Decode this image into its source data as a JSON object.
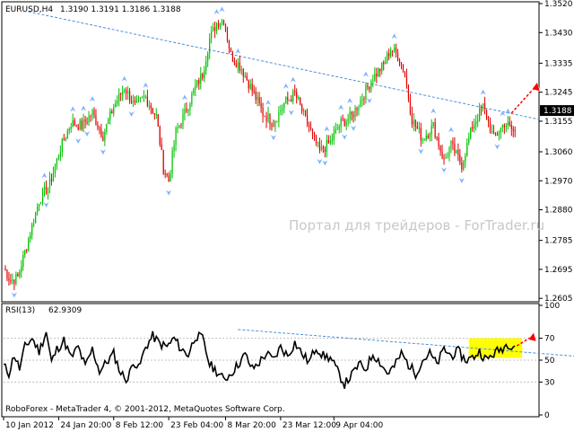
{
  "header": {
    "symbol": "EURUSD,H4",
    "ohlc": "1.3190 1.3191 1.3186 1.3188"
  },
  "watermark": "Портал для трейдеров - ForTrader.ru",
  "footer_copyright": "RoboForex - MetaTrader 4, © 2001-2012, MetaQuotes Software Corp.",
  "colors": {
    "bull": "#00c000",
    "bear": "#e00000",
    "fractal": "#7fb2ff",
    "trendline": "#4a90d9",
    "highlight": "#ffff00",
    "arrow": "#ff0000"
  },
  "chart_data": [
    {
      "type": "candlestick",
      "name": "EURUSD,H4",
      "ylim": [
        1.26,
        1.352
      ],
      "yticks": [
        "1.3520",
        "1.3430",
        "1.3335",
        "1.3245",
        "1.3155",
        "1.3060",
        "1.2970",
        "1.2880",
        "1.2785",
        "1.2695",
        "1.2605"
      ],
      "current_price_label": "1.3188",
      "xticks": [
        "10 Jan 2012",
        "24 Jan 20:00",
        "8 Feb 12:00",
        "23 Feb 04:00",
        "8 Mar 20:00",
        "23 Mar 12:00",
        "9 Apr 04:00"
      ],
      "close_path": [
        [
          0,
          1.27
        ],
        [
          4,
          1.266
        ],
        [
          8,
          1.267
        ],
        [
          14,
          1.279
        ],
        [
          20,
          1.291
        ],
        [
          26,
          1.296
        ],
        [
          32,
          1.307
        ],
        [
          38,
          1.315
        ],
        [
          44,
          1.314
        ],
        [
          50,
          1.318
        ],
        [
          56,
          1.311
        ],
        [
          62,
          1.32
        ],
        [
          68,
          1.326
        ],
        [
          74,
          1.32
        ],
        [
          80,
          1.323
        ],
        [
          86,
          1.317
        ],
        [
          90,
          1.301
        ],
        [
          93,
          1.297
        ],
        [
          97,
          1.312
        ],
        [
          102,
          1.318
        ],
        [
          108,
          1.326
        ],
        [
          112,
          1.33
        ],
        [
          116,
          1.341
        ],
        [
          120,
          1.346
        ],
        [
          124,
          1.347
        ],
        [
          128,
          1.336
        ],
        [
          134,
          1.332
        ],
        [
          140,
          1.325
        ],
        [
          146,
          1.318
        ],
        [
          152,
          1.315
        ],
        [
          158,
          1.321
        ],
        [
          164,
          1.324
        ],
        [
          170,
          1.316
        ],
        [
          178,
          1.306
        ],
        [
          184,
          1.309
        ],
        [
          190,
          1.315
        ],
        [
          196,
          1.317
        ],
        [
          202,
          1.323
        ],
        [
          208,
          1.329
        ],
        [
          214,
          1.333
        ],
        [
          218,
          1.338
        ],
        [
          222,
          1.336
        ],
        [
          226,
          1.33
        ],
        [
          230,
          1.316
        ],
        [
          236,
          1.31
        ],
        [
          242,
          1.314
        ],
        [
          248,
          1.303
        ],
        [
          252,
          1.308
        ],
        [
          258,
          1.302
        ],
        [
          264,
          1.314
        ],
        [
          270,
          1.32
        ],
        [
          276,
          1.31
        ],
        [
          282,
          1.315
        ],
        [
          288,
          1.312
        ]
      ],
      "trendline": [
        [
          14,
          1.3495
        ],
        [
          302,
          1.316
        ]
      ],
      "forecast_arrow": [
        [
          286,
          1.318
        ],
        [
          300,
          1.3265
        ]
      ]
    },
    {
      "type": "line",
      "name": "RSI(13)",
      "value_label": "62.9309",
      "ylim": [
        0,
        100
      ],
      "yticks": [
        "100",
        "70",
        "50",
        "30",
        "0"
      ],
      "levels": [
        70,
        50,
        30
      ],
      "rsi_path": [
        [
          0,
          45
        ],
        [
          3,
          38
        ],
        [
          6,
          55
        ],
        [
          9,
          42
        ],
        [
          12,
          62
        ],
        [
          16,
          70
        ],
        [
          20,
          58
        ],
        [
          24,
          76
        ],
        [
          27,
          48
        ],
        [
          30,
          60
        ],
        [
          34,
          68
        ],
        [
          38,
          52
        ],
        [
          42,
          62
        ],
        [
          46,
          44
        ],
        [
          50,
          60
        ],
        [
          54,
          40
        ],
        [
          58,
          48
        ],
        [
          62,
          56
        ],
        [
          66,
          38
        ],
        [
          70,
          32
        ],
        [
          73,
          50
        ],
        [
          76,
          42
        ],
        [
          80,
          62
        ],
        [
          84,
          72
        ],
        [
          88,
          65
        ],
        [
          92,
          62
        ],
        [
          96,
          70
        ],
        [
          100,
          60
        ],
        [
          104,
          55
        ],
        [
          108,
          72
        ],
        [
          112,
          70
        ],
        [
          116,
          46
        ],
        [
          120,
          40
        ],
        [
          124,
          32
        ],
        [
          128,
          38
        ],
        [
          132,
          46
        ],
        [
          136,
          55
        ],
        [
          140,
          42
        ],
        [
          144,
          48
        ],
        [
          148,
          56
        ],
        [
          152,
          50
        ],
        [
          156,
          62
        ],
        [
          160,
          54
        ],
        [
          164,
          66
        ],
        [
          168,
          56
        ],
        [
          172,
          48
        ],
        [
          176,
          62
        ],
        [
          180,
          54
        ],
        [
          184,
          52
        ],
        [
          188,
          40
        ],
        [
          192,
          28
        ],
        [
          196,
          36
        ],
        [
          200,
          46
        ],
        [
          204,
          42
        ],
        [
          208,
          56
        ],
        [
          212,
          48
        ],
        [
          216,
          38
        ],
        [
          220,
          44
        ],
        [
          224,
          56
        ],
        [
          228,
          46
        ],
        [
          232,
          38
        ],
        [
          236,
          50
        ],
        [
          240,
          56
        ],
        [
          244,
          46
        ],
        [
          248,
          60
        ],
        [
          252,
          54
        ],
        [
          256,
          58
        ],
        [
          260,
          50
        ],
        [
          264,
          52
        ],
        [
          268,
          58
        ],
        [
          272,
          50
        ],
        [
          276,
          56
        ],
        [
          280,
          60
        ],
        [
          284,
          65
        ],
        [
          288,
          62.93
        ]
      ],
      "trendline": [
        [
          132,
          78
        ],
        [
          350,
          50
        ]
      ],
      "highlight_box": [
        [
          262,
          70
        ],
        [
          292,
          52
        ]
      ],
      "forecast_arrow": [
        [
          289,
          63
        ],
        [
          298,
          72
        ]
      ]
    }
  ]
}
